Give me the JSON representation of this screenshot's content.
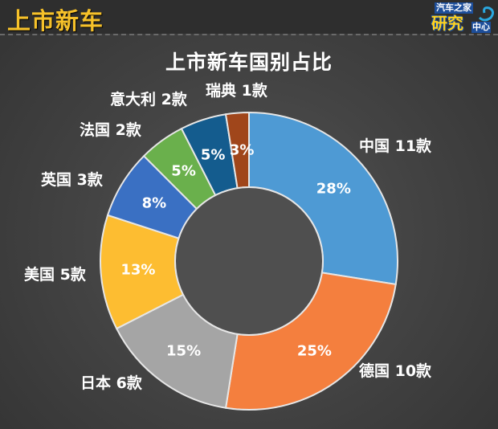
{
  "header": {
    "title": "上市新车",
    "logo": {
      "top": "汽车之家",
      "big": "研究",
      "small": "中心"
    }
  },
  "chart_data": {
    "type": "pie",
    "subtype": "donut",
    "title": "上市新车国别占比",
    "unit": "款",
    "categories": [
      "中国",
      "德国",
      "日本",
      "美国",
      "英国",
      "法国",
      "意大利",
      "瑞典"
    ],
    "values": [
      11,
      10,
      6,
      5,
      3,
      2,
      2,
      1
    ],
    "percent_labels": [
      "28%",
      "25%",
      "15%",
      "13%",
      "8%",
      "5%",
      "5%",
      "3%"
    ],
    "category_labels": [
      "中国 11款",
      "德国 10款",
      "日本 6款",
      "美国 5款",
      "英国 3款",
      "法国 2款",
      "意大利 2款",
      "瑞典 1款"
    ],
    "colors": [
      "#4e9ad4",
      "#f47f3e",
      "#a5a5a5",
      "#fdbd31",
      "#3a70c3",
      "#6ab04c",
      "#145c8e",
      "#a0461b"
    ],
    "start_angle": "12 o'clock, clockwise",
    "legend": "none (labels placed outside slices)"
  }
}
